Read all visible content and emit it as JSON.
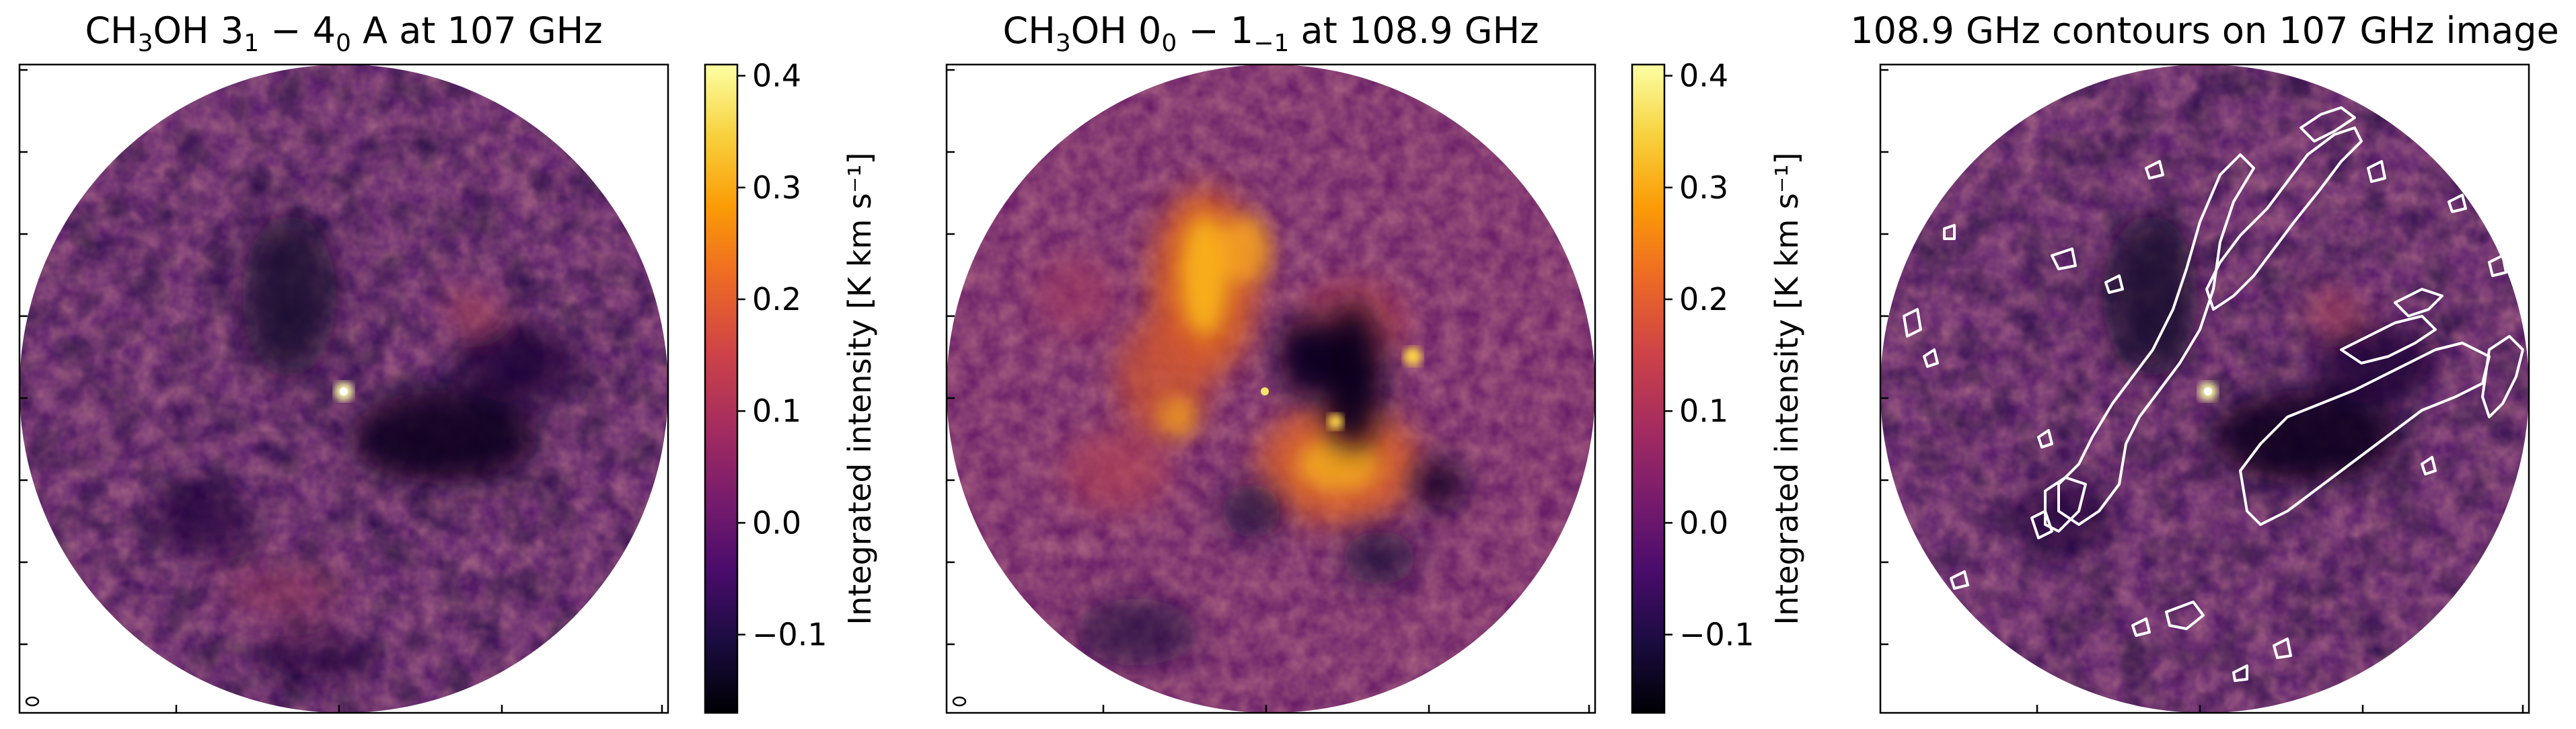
{
  "chart_data": [
    {
      "type": "heatmap",
      "title": {
        "pre": "CH",
        "sub1": "3",
        "mid": "OH 3",
        "sub2": "1",
        "mid2": " − 4",
        "sub3": "0",
        "post": " A at 107 GHz"
      },
      "xlabel": "",
      "ylabel": "",
      "cmap": "inferno",
      "colorbar": {
        "label": "Integrated intensity [K km s⁻¹]",
        "range": [
          -0.17,
          0.41
        ],
        "ticks": [
          -0.1,
          0.0,
          0.1,
          0.2,
          0.3,
          0.4
        ],
        "tick_labels": [
          "−0.1",
          "0.0",
          "0.1",
          "0.2",
          "0.3",
          "0.4"
        ]
      },
      "grid": false,
      "features": {
        "compact_source": "bright point near centre (~0.41 K km s⁻¹)",
        "beam": "small ellipse lower-left"
      }
    },
    {
      "type": "heatmap",
      "title": {
        "pre": "CH",
        "sub1": "3",
        "mid": "OH 0",
        "sub2": "0",
        "mid2": " − 1",
        "sub3": "−1",
        "post": " at 108.9 GHz"
      },
      "xlabel": "",
      "ylabel": "",
      "cmap": "inferno",
      "colorbar": {
        "label": "Integrated intensity [K km s⁻¹]",
        "range": [
          -0.17,
          0.41
        ],
        "ticks": [
          -0.1,
          0.0,
          0.1,
          0.2,
          0.3,
          0.4
        ],
        "tick_labels": [
          "−0.1",
          "0.0",
          "0.1",
          "0.2",
          "0.3",
          "0.4"
        ]
      },
      "grid": false,
      "features": {
        "extended_emission": "bright filamentary emission (0.2–0.35 K km s⁻¹) across central region",
        "beam": "small ellipse lower-left"
      }
    },
    {
      "type": "heatmap",
      "title": "108.9 GHz contours on 107 GHz image",
      "xlabel": "",
      "ylabel": "",
      "cmap": "inferno",
      "overlay": "white contours of 108.9 GHz emission",
      "grid": false
    }
  ],
  "colors": {
    "background_mid": "#5a1f6b",
    "contour": "#ffffff",
    "cmap_stops": [
      "#000004",
      "#1b0c41",
      "#4a0c6b",
      "#781c6d",
      "#a52c60",
      "#cf4446",
      "#ed6925",
      "#fb9b06",
      "#f7d13d",
      "#fcffa4"
    ]
  }
}
